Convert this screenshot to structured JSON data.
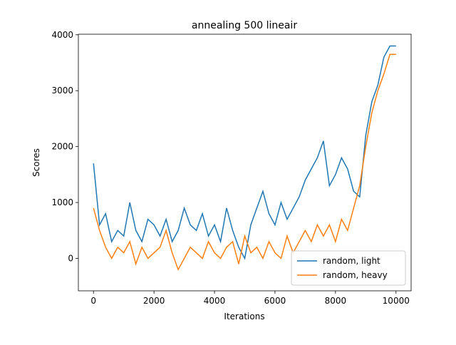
{
  "chart_data": {
    "type": "line",
    "title": "annealing 500 lineair",
    "x_label": "Iterations",
    "y_label": "Scores",
    "x": [
      0,
      200,
      400,
      600,
      800,
      1000,
      1200,
      1400,
      1600,
      1800,
      2000,
      2200,
      2400,
      2600,
      2800,
      3000,
      3200,
      3400,
      3600,
      3800,
      4000,
      4200,
      4400,
      4600,
      4800,
      5000,
      5200,
      5400,
      5600,
      5800,
      6000,
      6200,
      6400,
      6600,
      6800,
      7000,
      7200,
      7400,
      7600,
      7800,
      8000,
      8200,
      8400,
      8600,
      8800,
      9000,
      9200,
      9400,
      9600,
      9800,
      10000
    ],
    "series": [
      {
        "name": "random, light",
        "color": "#1f77b4",
        "values": [
          1700,
          600,
          800,
          300,
          500,
          400,
          1000,
          500,
          300,
          700,
          600,
          400,
          700,
          300,
          500,
          900,
          600,
          500,
          800,
          400,
          600,
          300,
          900,
          500,
          200,
          0,
          600,
          900,
          1200,
          800,
          600,
          1000,
          700,
          900,
          1100,
          1400,
          1600,
          1800,
          2100,
          1300,
          1500,
          1800,
          1600,
          1200,
          1100,
          2200,
          2800,
          3100,
          3600,
          3800,
          3800
        ]
      },
      {
        "name": "random, heavy",
        "color": "#ff7f0e",
        "values": [
          900,
          500,
          200,
          0,
          200,
          100,
          300,
          -100,
          200,
          0,
          100,
          200,
          500,
          100,
          -200,
          0,
          200,
          100,
          0,
          300,
          100,
          0,
          200,
          300,
          -100,
          400,
          100,
          200,
          0,
          300,
          100,
          0,
          400,
          100,
          300,
          500,
          300,
          600,
          400,
          600,
          300,
          700,
          500,
          900,
          1300,
          2000,
          2600,
          3000,
          3300,
          3650,
          3650
        ]
      }
    ],
    "xlim": [
      -500,
      10500
    ],
    "ylim": [
      -580,
      4010
    ],
    "xticks": [
      0,
      2000,
      4000,
      6000,
      8000,
      10000
    ],
    "yticks": [
      0,
      1000,
      2000,
      3000,
      4000
    ],
    "legend": "lower right"
  }
}
